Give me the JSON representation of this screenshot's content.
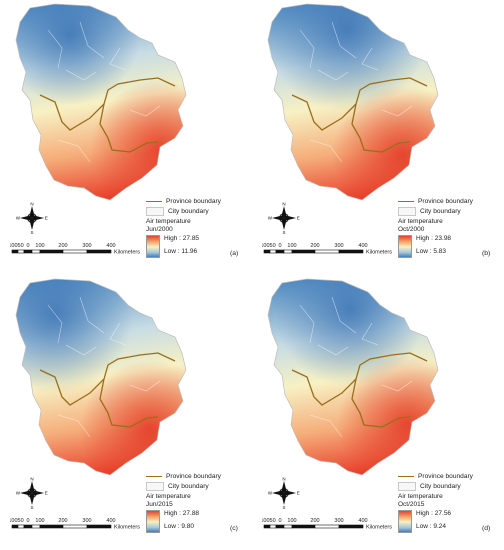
{
  "panels": [
    {
      "tag": "(a)",
      "legend": {
        "province": "Province boundary",
        "city": "City boundary",
        "title": "Air temperature",
        "date": "Jun/2000",
        "high": "High : 27.85",
        "low": "Low : 11.96"
      }
    },
    {
      "tag": "(b)",
      "legend": {
        "province": "Province boundary",
        "city": "City boundary",
        "title": "Air temperature",
        "date": "Oct/2000",
        "high": "High : 23.98",
        "low": "Low : 5.83"
      }
    },
    {
      "tag": "(c)",
      "legend": {
        "province": "Province boundary",
        "city": "City boundary",
        "title": "Air temperature",
        "date": "Jun/2015",
        "high": "High : 27.88",
        "low": "Low : 9.80"
      }
    },
    {
      "tag": "(d)",
      "legend": {
        "province": "Province boundary",
        "city": "City boundary",
        "title": "Air temperature",
        "date": "Oct/2015",
        "high": "High : 27.56",
        "low": "Low : 9.24"
      }
    }
  ],
  "scalebar": {
    "labels": [
      "10050",
      "0",
      "100",
      "200",
      "300",
      "400"
    ],
    "unit": "Kilometers"
  },
  "north_arrow": {
    "n": "N",
    "s": "S",
    "e": "E",
    "w": "W"
  },
  "colors": {
    "high": "#e8402b",
    "mid": "#f7f1c4",
    "low": "#3f7fbd",
    "province_boundary": "#9a6e1b",
    "city_boundary": "#c8c8c8"
  }
}
